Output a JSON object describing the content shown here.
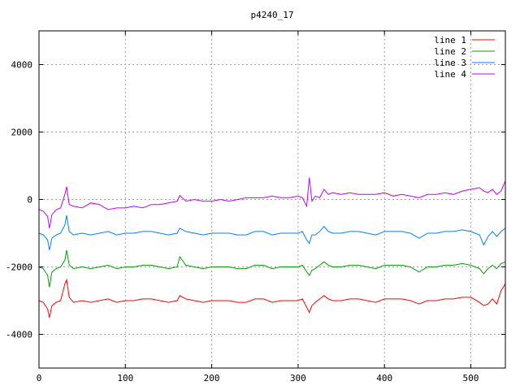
{
  "chart_data": {
    "type": "line",
    "title": "p4240_17",
    "xlabel": "",
    "ylabel": "",
    "xlim": [
      0,
      540
    ],
    "ylim": [
      -5000,
      5000
    ],
    "xticks": [
      0,
      100,
      200,
      300,
      400,
      500
    ],
    "yticks": [
      -4000,
      -2000,
      0,
      2000,
      4000
    ],
    "grid": true,
    "legend_position": "top-right",
    "x": [
      0,
      5,
      10,
      12,
      15,
      20,
      25,
      30,
      32,
      35,
      40,
      50,
      60,
      70,
      80,
      90,
      100,
      110,
      120,
      130,
      140,
      150,
      160,
      163,
      170,
      180,
      190,
      200,
      210,
      220,
      230,
      240,
      250,
      260,
      270,
      280,
      290,
      300,
      305,
      310,
      313,
      316,
      320,
      325,
      330,
      335,
      340,
      350,
      360,
      370,
      380,
      390,
      400,
      410,
      420,
      430,
      440,
      450,
      460,
      470,
      480,
      490,
      500,
      510,
      515,
      520,
      525,
      530,
      535,
      540
    ],
    "series": [
      {
        "name": "line 1",
        "color": "#ff0000",
        "values": [
          -3000,
          -3050,
          -3250,
          -3500,
          -3150,
          -3050,
          -3000,
          -2500,
          -2380,
          -2900,
          -3050,
          -3000,
          -3050,
          -3000,
          -2950,
          -3050,
          -3000,
          -3000,
          -2950,
          -2950,
          -3000,
          -3050,
          -3000,
          -2850,
          -2950,
          -3000,
          -3050,
          -3000,
          -3000,
          -3000,
          -3050,
          -3050,
          -2950,
          -2950,
          -3050,
          -3000,
          -3000,
          -3000,
          -2950,
          -3200,
          -3350,
          -3150,
          -3050,
          -2950,
          -2850,
          -2950,
          -3000,
          -3000,
          -2950,
          -2950,
          -3000,
          -3050,
          -2950,
          -2950,
          -2950,
          -3000,
          -3100,
          -3000,
          -3000,
          -2950,
          -2950,
          -2900,
          -2900,
          -3050,
          -3150,
          -3100,
          -2950,
          -3100,
          -2700,
          -2500
        ]
      },
      {
        "name": "line 2",
        "color": "#00a000",
        "values": [
          -2000,
          -2050,
          -2250,
          -2600,
          -2150,
          -2050,
          -2000,
          -1800,
          -1500,
          -1950,
          -2050,
          -2000,
          -2050,
          -2000,
          -1950,
          -2050,
          -2000,
          -2000,
          -1950,
          -1950,
          -2000,
          -2050,
          -2000,
          -1700,
          -1950,
          -2000,
          -2050,
          -2000,
          -2000,
          -2000,
          -2050,
          -2050,
          -1950,
          -1950,
          -2050,
          -2000,
          -2000,
          -2000,
          -1950,
          -2150,
          -2250,
          -2100,
          -2050,
          -1950,
          -1850,
          -1950,
          -2000,
          -2000,
          -1950,
          -1950,
          -2000,
          -2050,
          -1950,
          -1950,
          -1950,
          -2000,
          -2150,
          -2000,
          -2000,
          -1950,
          -1950,
          -1900,
          -1950,
          -2050,
          -2200,
          -2050,
          -1950,
          -2050,
          -1900,
          -1850
        ]
      },
      {
        "name": "line 3",
        "color": "#0080ff",
        "values": [
          -1000,
          -1050,
          -1200,
          -1500,
          -1150,
          -1050,
          -1000,
          -750,
          -470,
          -950,
          -1050,
          -1000,
          -1050,
          -1000,
          -950,
          -1050,
          -1000,
          -1000,
          -950,
          -950,
          -1000,
          -1050,
          -1000,
          -850,
          -950,
          -1000,
          -1050,
          -1000,
          -1000,
          -1000,
          -1050,
          -1050,
          -950,
          -950,
          -1050,
          -1000,
          -1000,
          -1000,
          -950,
          -1200,
          -1300,
          -1050,
          -1050,
          -950,
          -800,
          -950,
          -1000,
          -1000,
          -950,
          -950,
          -1000,
          -1050,
          -950,
          -950,
          -950,
          -1000,
          -1150,
          -1000,
          -1000,
          -950,
          -950,
          -900,
          -950,
          -1050,
          -1350,
          -1100,
          -950,
          -1100,
          -950,
          -850
        ]
      },
      {
        "name": "line 4",
        "color": "#c000ff",
        "values": [
          -300,
          -350,
          -500,
          -850,
          -450,
          -300,
          -250,
          150,
          380,
          -150,
          -200,
          -250,
          -100,
          -150,
          -300,
          -250,
          -250,
          -200,
          -250,
          -150,
          -150,
          -100,
          -50,
          120,
          -50,
          0,
          -50,
          -50,
          0,
          -50,
          0,
          50,
          50,
          50,
          100,
          50,
          50,
          100,
          50,
          -200,
          650,
          -50,
          100,
          50,
          300,
          150,
          200,
          150,
          200,
          150,
          150,
          150,
          200,
          100,
          150,
          100,
          50,
          150,
          150,
          200,
          150,
          250,
          300,
          350,
          250,
          200,
          300,
          150,
          250,
          550
        ]
      }
    ]
  }
}
